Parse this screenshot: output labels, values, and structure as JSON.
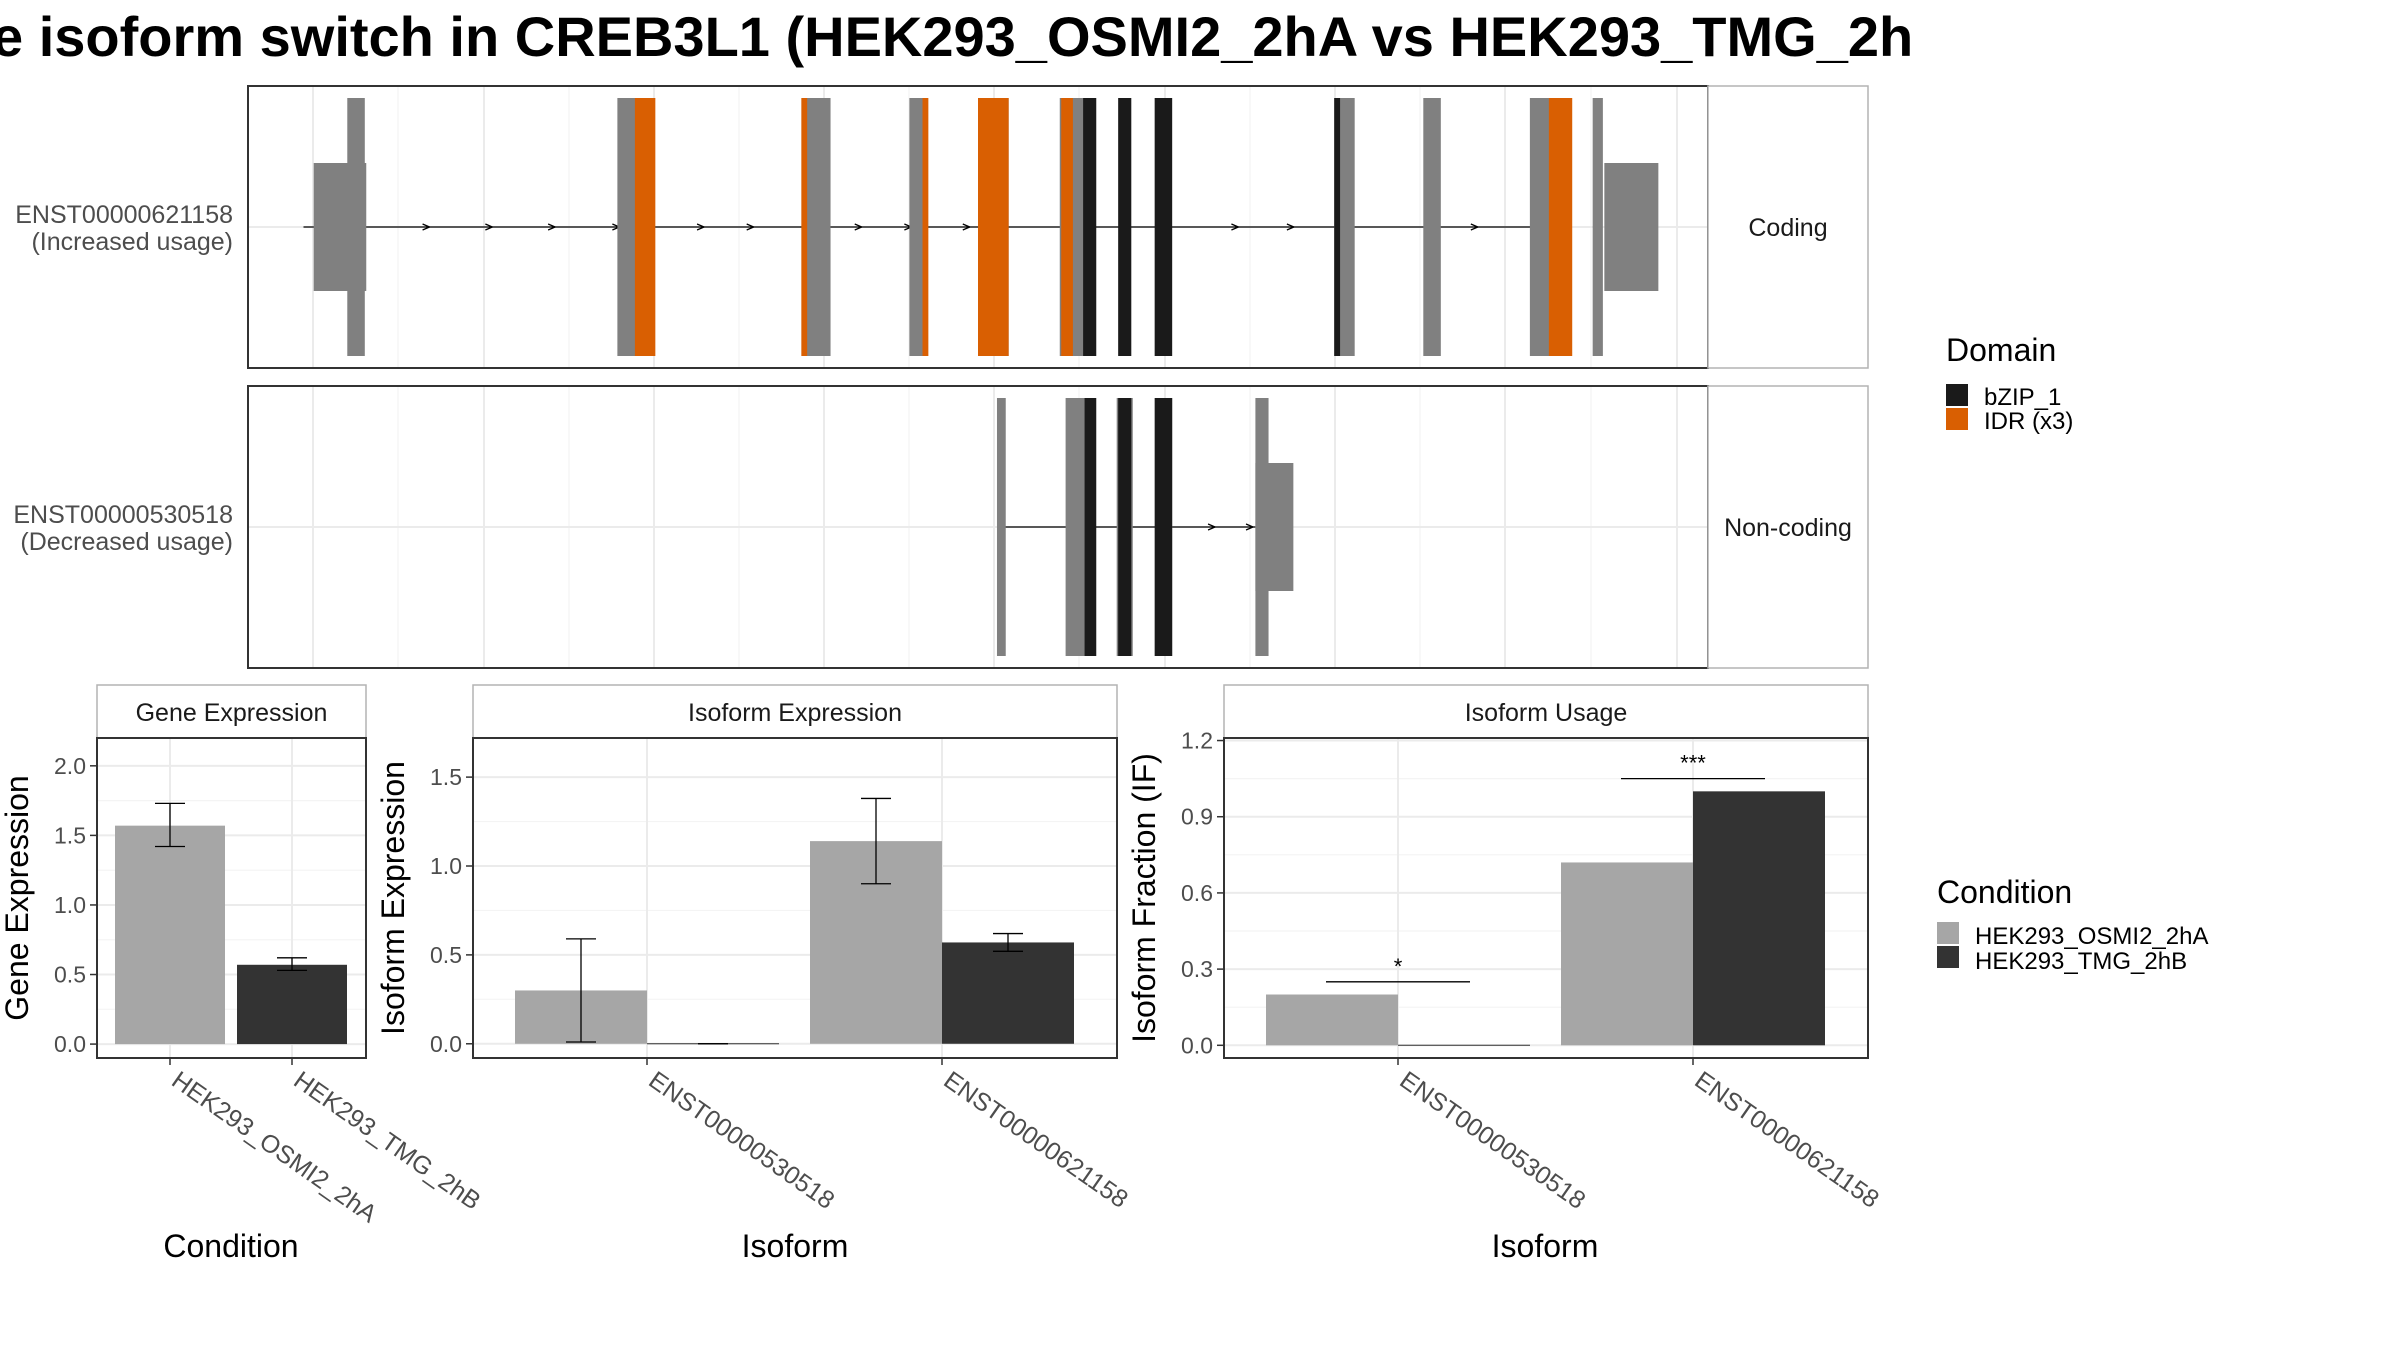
{
  "title": "e isoform switch in CREB3L1 (HEK293_OSMI2_2hA vs HEK293_TMG_2h",
  "colors": {
    "condition_a": "#a6a6a6",
    "condition_b": "#333333",
    "exon": "#808080",
    "bzip": "#1a1a1a",
    "idr": "#d95f02",
    "grid": "#ebebeb",
    "panel_border": "#333333",
    "strip_border": "#b3b3b3"
  },
  "chart_data": [
    {
      "type": "gene_structure",
      "x_range": [
        0,
        1000
      ],
      "transcripts": [
        {
          "id": "ENST00000621158",
          "label_line1": "ENST00000621158",
          "label_line2": "(Increased usage)",
          "facet": "Coding",
          "line": [
            38,
            897
          ],
          "utr": [
            [
              45,
              81
            ],
            [
              929,
              966
            ]
          ],
          "exons": [
            [
              68,
              80
            ],
            [
              253,
              273
            ],
            [
              380,
              399
            ],
            [
              453,
              465
            ],
            [
              500,
              521
            ],
            [
              556,
              580
            ],
            [
              744,
              758
            ],
            [
              805,
              817
            ],
            [
              878,
              902
            ],
            [
              921,
              928
            ]
          ],
          "domains": [
            {
              "type": "IDR",
              "range": [
                265,
                279
              ]
            },
            {
              "type": "IDR",
              "range": [
                379,
                383
              ]
            },
            {
              "type": "IDR",
              "range": [
                462,
                466
              ]
            },
            {
              "type": "IDR",
              "range": [
                500,
                521
              ]
            },
            {
              "type": "IDR",
              "range": [
                557,
                565
              ]
            },
            {
              "type": "IDR",
              "range": [
                891,
                907
              ]
            },
            {
              "type": "bZIP",
              "range": [
                572,
                581
              ]
            },
            {
              "type": "bZIP",
              "range": [
                596,
                605
              ]
            },
            {
              "type": "bZIP",
              "range": [
                621,
                633
              ]
            },
            {
              "type": "bZIP",
              "range": [
                744,
                748
              ]
            }
          ],
          "arrows": [
            123,
            166,
            209,
            253,
            311,
            345,
            419,
            453,
            493,
            677,
            715,
            750,
            841
          ]
        },
        {
          "id": "ENST00000530518",
          "label_line1": "ENST00000530518",
          "label_line2": "(Decreased usage)",
          "facet": "Non-coding",
          "line": [
            513,
            690
          ],
          "utr": [
            [
              690,
              716
            ]
          ],
          "exons": [
            [
              513,
              519
            ],
            [
              560,
              578
            ],
            [
              595,
              606
            ],
            [
              623,
              633
            ],
            [
              690,
              699
            ]
          ],
          "domains": [
            {
              "type": "bZIP",
              "range": [
                573,
                581
              ]
            },
            {
              "type": "bZIP",
              "range": [
                596,
                605
              ]
            },
            {
              "type": "bZIP",
              "range": [
                621,
                633
              ]
            }
          ],
          "arrows": [
            661,
            687
          ]
        }
      ],
      "legend": {
        "title": "Domain",
        "items": [
          {
            "label": "bZIP_1",
            "color": "#1a1a1a"
          },
          {
            "label": "IDR (x3)",
            "color": "#d95f02"
          }
        ]
      }
    },
    {
      "type": "bar",
      "strip": "Gene Expression",
      "xlabel": "Condition",
      "ylabel": "Gene Expression",
      "ylim": [
        -0.1,
        2.2
      ],
      "yticks": [
        0.0,
        0.5,
        1.0,
        1.5,
        2.0
      ],
      "ytick_labels": [
        "0.0",
        "0.5",
        "1.0",
        "1.5",
        "2.0"
      ],
      "categories": [
        "HEK293_OSMI2_2hA",
        "HEK293_TMG_2hB"
      ],
      "bars": [
        {
          "category": "HEK293_OSMI2_2hA",
          "series": "HEK293_OSMI2_2hA",
          "value": 1.57,
          "err_low": 1.42,
          "err_high": 1.73
        },
        {
          "category": "HEK293_TMG_2hB",
          "series": "HEK293_TMG_2hB",
          "value": 0.57,
          "err_low": 0.53,
          "err_high": 0.62
        }
      ]
    },
    {
      "type": "bar",
      "strip": "Isoform Expression",
      "xlabel": "Isoform",
      "ylabel": "Isoform Expression",
      "ylim": [
        -0.08,
        1.72
      ],
      "yticks": [
        0.0,
        0.5,
        1.0,
        1.5
      ],
      "ytick_labels": [
        "0.0",
        "0.5",
        "1.0",
        "1.5"
      ],
      "categories": [
        "ENST00000530518",
        "ENST00000621158"
      ],
      "series": [
        "HEK293_OSMI2_2hA",
        "HEK293_TMG_2hB"
      ],
      "bars": [
        {
          "category": "ENST00000530518",
          "series": "HEK293_OSMI2_2hA",
          "value": 0.3,
          "err_low": 0.01,
          "err_high": 0.59
        },
        {
          "category": "ENST00000530518",
          "series": "HEK293_TMG_2hB",
          "value": 0.0,
          "err_low": 0.0,
          "err_high": 0.0
        },
        {
          "category": "ENST00000621158",
          "series": "HEK293_OSMI2_2hA",
          "value": 1.14,
          "err_low": 0.9,
          "err_high": 1.38
        },
        {
          "category": "ENST00000621158",
          "series": "HEK293_TMG_2hB",
          "value": 0.57,
          "err_low": 0.52,
          "err_high": 0.62
        }
      ]
    },
    {
      "type": "bar",
      "strip": "Isoform Usage",
      "xlabel": "Isoform",
      "ylabel": "Isoform Fraction (IF)",
      "ylim": [
        -0.05,
        1.21
      ],
      "yticks": [
        0.0,
        0.3,
        0.6,
        0.9,
        1.2
      ],
      "ytick_labels": [
        "0.0",
        "0.3",
        "0.6",
        "0.9",
        "1.2"
      ],
      "categories": [
        "ENST00000530518",
        "ENST00000621158"
      ],
      "series": [
        "HEK293_OSMI2_2hA",
        "HEK293_TMG_2hB"
      ],
      "bars": [
        {
          "category": "ENST00000530518",
          "series": "HEK293_OSMI2_2hA",
          "value": 0.2
        },
        {
          "category": "ENST00000530518",
          "series": "HEK293_TMG_2hB",
          "value": 0.0
        },
        {
          "category": "ENST00000621158",
          "series": "HEK293_OSMI2_2hA",
          "value": 0.72
        },
        {
          "category": "ENST00000621158",
          "series": "HEK293_TMG_2hB",
          "value": 1.0
        }
      ],
      "significance": [
        {
          "category": "ENST00000530518",
          "label": "*",
          "y": 0.25
        },
        {
          "category": "ENST00000621158",
          "label": "***",
          "y": 1.05
        }
      ]
    }
  ],
  "legend_condition": {
    "title": "Condition",
    "items": [
      {
        "label": "HEK293_OSMI2_2hA",
        "color": "#a6a6a6"
      },
      {
        "label": "HEK293_TMG_2hB",
        "color": "#333333"
      }
    ]
  }
}
